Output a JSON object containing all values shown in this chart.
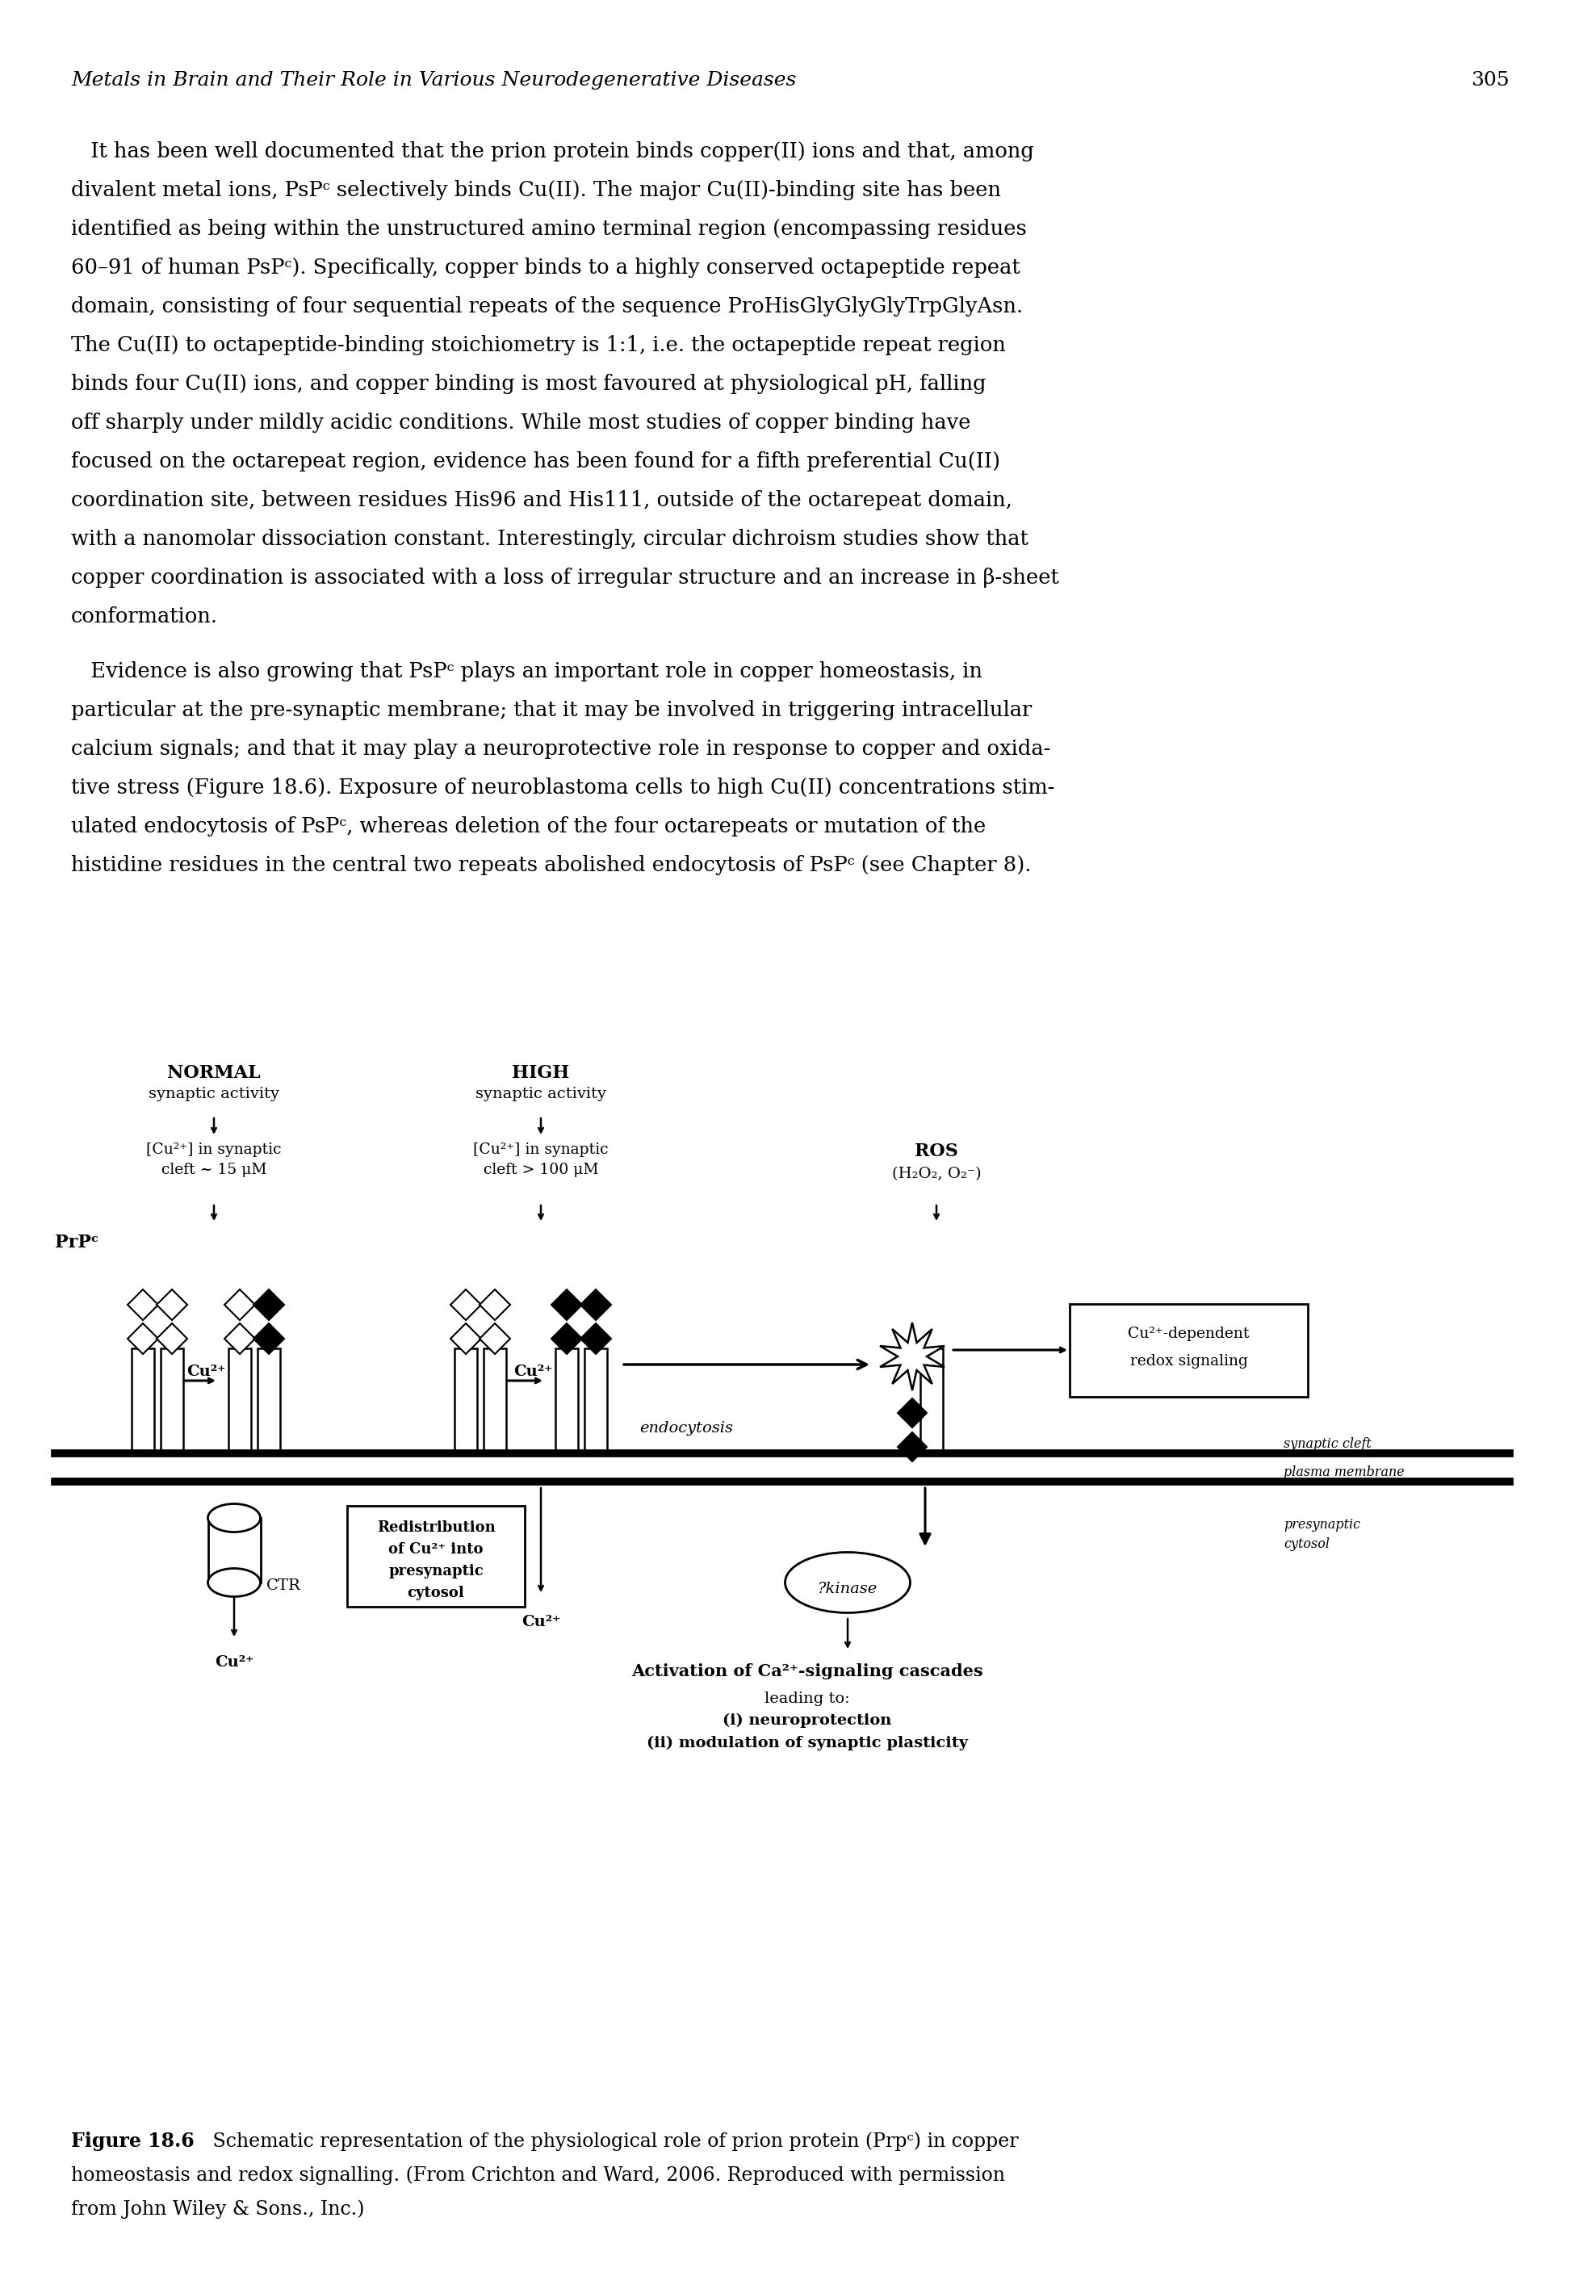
{
  "page_header_italic": "Metals in Brain and Their Role in Various Neurodegenerative Diseases",
  "page_number": "305",
  "p1_lines": [
    "   It has been well documented that the prion protein binds copper(II) ions and that, among",
    "divalent metal ions, PsPᶜ selectively binds Cu(II). The major Cu(II)-binding site has been",
    "identified as being within the unstructured amino terminal region (encompassing residues",
    "60–91 of human PsPᶜ). Specifically, copper binds to a highly conserved octapeptide repeat",
    "domain, consisting of four sequential repeats of the sequence ProHisGlyGlyGlyTrpGlyAsn.",
    "The Cu(II) to octapeptide-binding stoichiometry is 1:1, i.e. the octapeptide repeat region",
    "binds four Cu(II) ions, and copper binding is most favoured at physiological pH, falling",
    "off sharply under mildly acidic conditions. While most studies of copper binding have",
    "focused on the octarepeat region, evidence has been found for a fifth preferential Cu(II)",
    "coordination site, between residues His96 and His111, outside of the octarepeat domain,",
    "with a nanomolar dissociation constant. Interestingly, circular dichroism studies show that",
    "copper coordination is associated with a loss of irregular structure and an increase in β-sheet",
    "conformation."
  ],
  "p2_lines": [
    "   Evidence is also growing that PsPᶜ plays an important role in copper homeostasis, in",
    "particular at the pre-synaptic membrane; that it may be involved in triggering intracellular",
    "calcium signals; and that it may play a neuroprotective role in response to copper and oxida-",
    "tive stress (Figure 18.6). Exposure of neuroblastoma cells to high Cu(II) concentrations stim-",
    "ulated endocytosis of PsPᶜ, whereas deletion of the four octarepeats or mutation of the",
    "histidine residues in the central two repeats abolished endocytosis of PsPᶜ (see Chapter 8)."
  ],
  "bg_color": "#ffffff",
  "text_color": "#000000"
}
